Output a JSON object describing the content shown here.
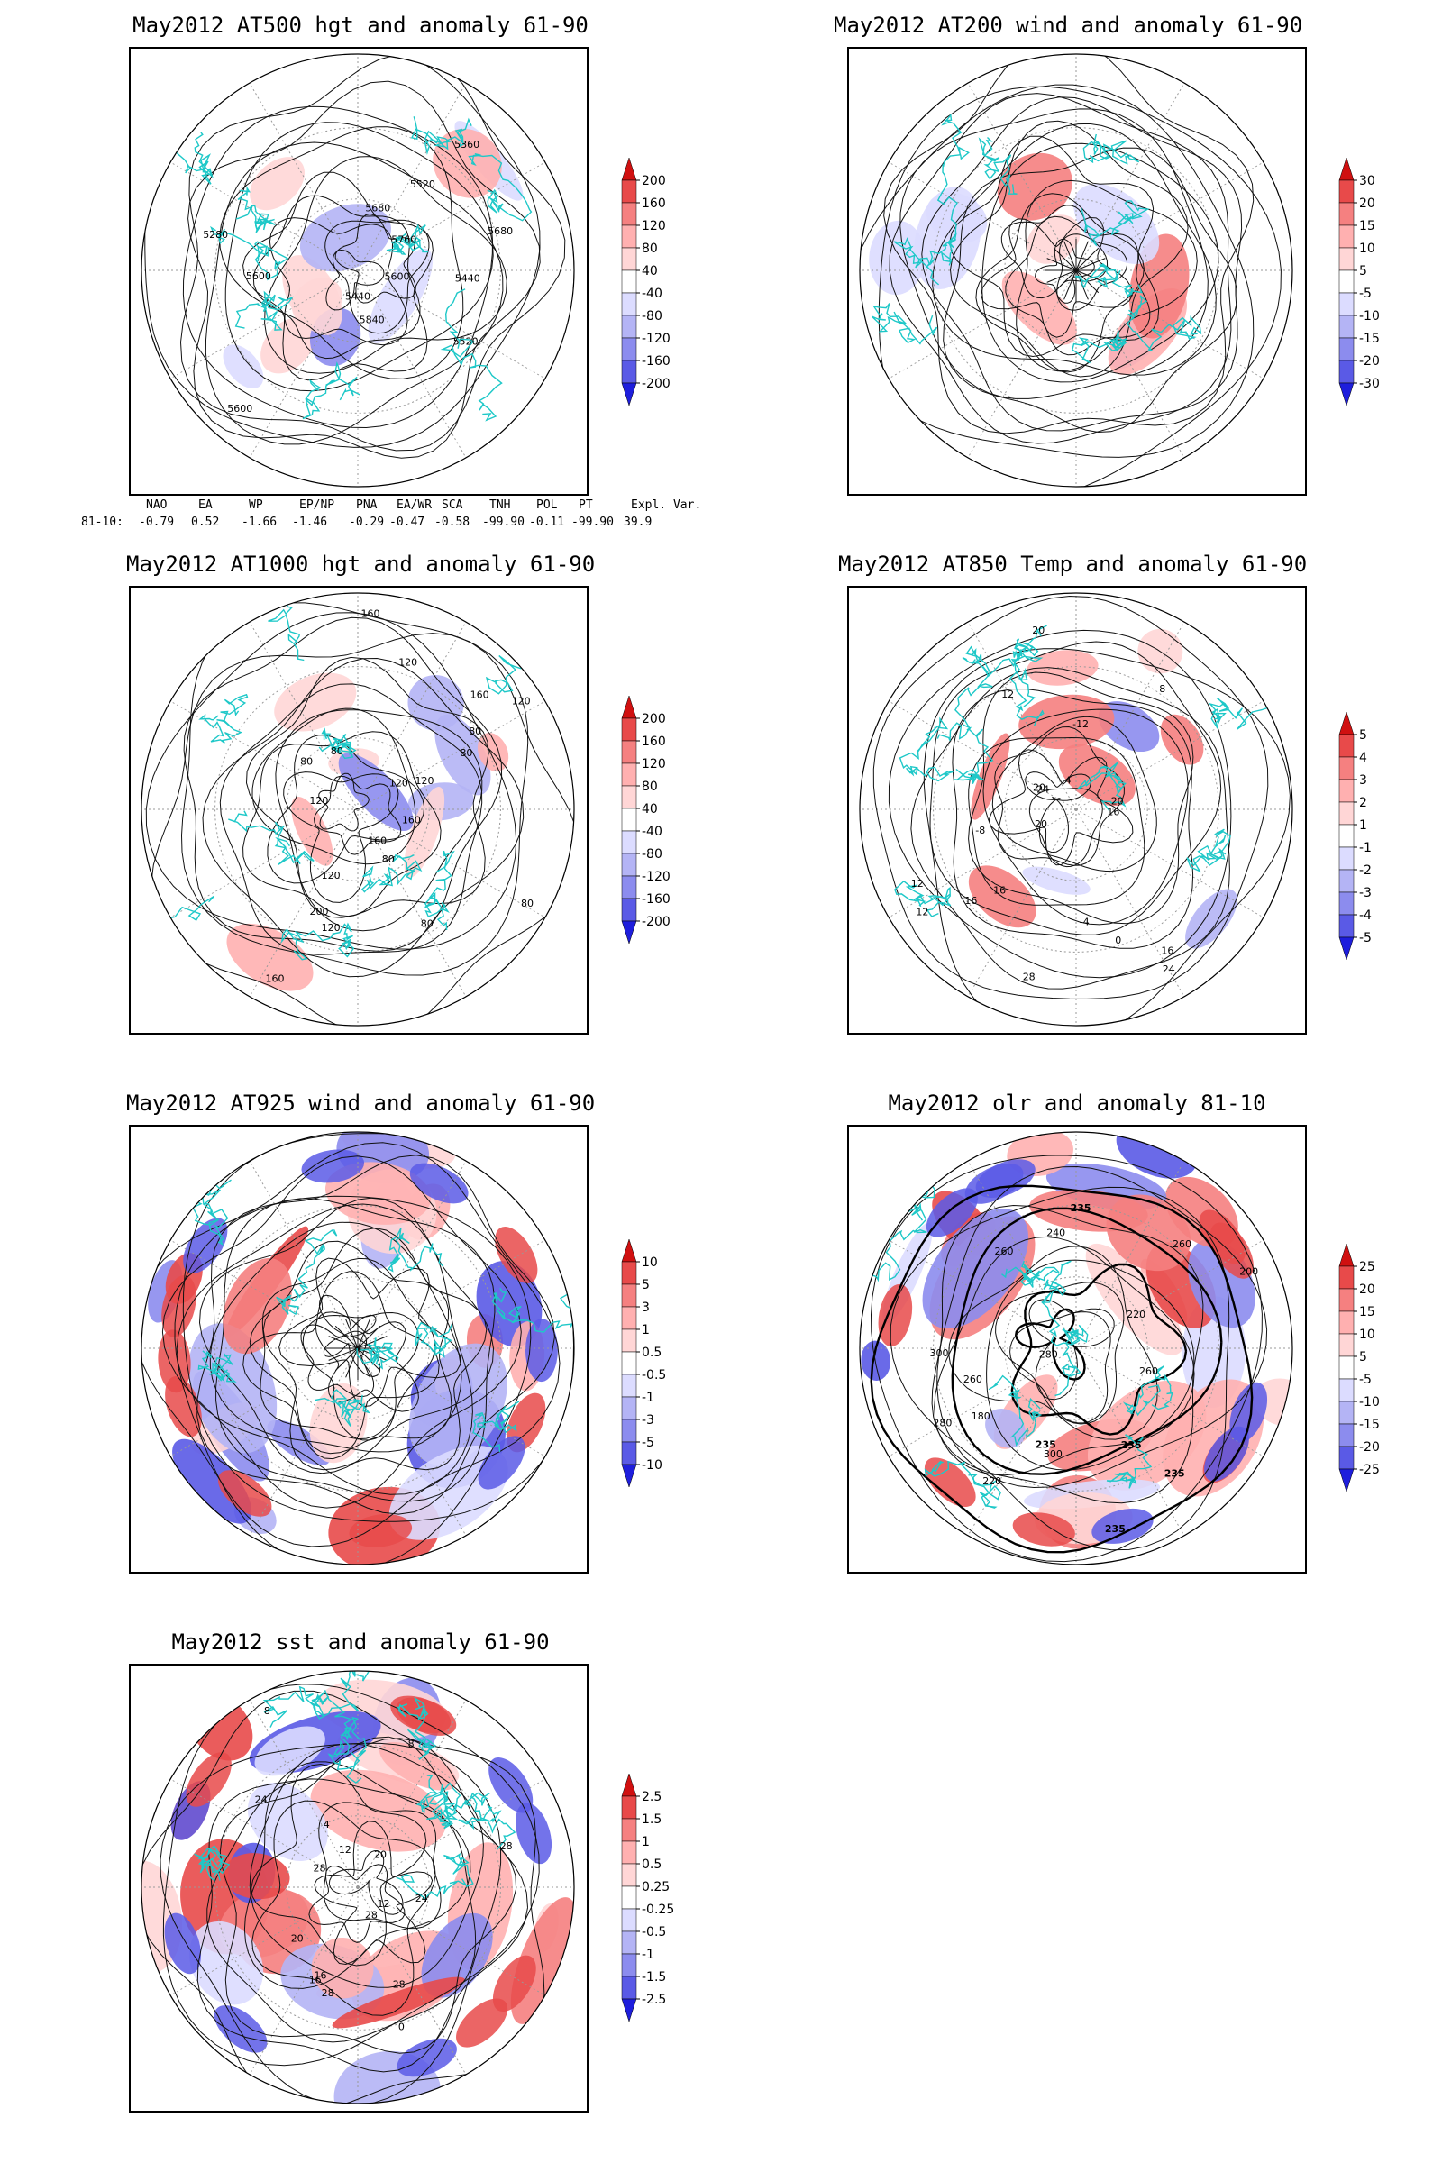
{
  "panels": [
    {
      "id": "p1",
      "title": "May2012 AT500 hgt and anomaly 61-90",
      "variant": "hgt500",
      "scale": [
        "200",
        "160",
        "120",
        "80",
        "40",
        "-40",
        "-80",
        "-120",
        "-160",
        "-200"
      ],
      "contour_labels": [
        "5600",
        "5520",
        "5440",
        "5600",
        "5280",
        "5360",
        "5440",
        "5520",
        "5600",
        "5680",
        "5760",
        "5840",
        "5680"
      ]
    },
    {
      "id": "p2",
      "title": "May2012 AT200 wind and anomaly 61-90",
      "variant": "wind200",
      "scale": [
        "30",
        "20",
        "15",
        "10",
        "5",
        "-5",
        "-10",
        "-15",
        "-20",
        "-30"
      ],
      "contour_labels": []
    },
    {
      "id": "p3",
      "title": "May2012 AT1000 hgt and anomaly 61-90",
      "variant": "hgt1000",
      "scale": [
        "200",
        "160",
        "120",
        "80",
        "40",
        "-40",
        "-80",
        "-120",
        "-160",
        "-200"
      ],
      "contour_labels": [
        "80",
        "120",
        "160",
        "160",
        "200",
        "160",
        "120",
        "80",
        "120",
        "80",
        "120",
        "160",
        "80",
        "120",
        "120",
        "160",
        "80",
        "120",
        "80",
        "80"
      ]
    },
    {
      "id": "p4",
      "title": "May2012 AT850 Temp and anomaly 61-90",
      "variant": "t850",
      "scale": [
        "5",
        "4",
        "3",
        "2",
        "1",
        "-1",
        "-2",
        "-3",
        "-4",
        "-5"
      ],
      "contour_labels": [
        "16",
        "12",
        "12",
        "16",
        "20",
        "24",
        "8",
        "0",
        "-8",
        "-12",
        "-4",
        "4",
        "12",
        "16",
        "20",
        "24",
        "28",
        "20",
        "16",
        "20"
      ]
    },
    {
      "id": "p5",
      "title": "May2012 AT925 wind and anomaly 61-90",
      "variant": "wind925",
      "scale": [
        "10",
        "5",
        "3",
        "1",
        "0.5",
        "-0.5",
        "-1",
        "-3",
        "-5",
        "-10"
      ],
      "contour_labels": []
    },
    {
      "id": "p6",
      "title": "May2012 olr and anomaly 81-10",
      "variant": "olr",
      "scale": [
        "25",
        "20",
        "15",
        "10",
        "5",
        "-5",
        "-10",
        "-15",
        "-20",
        "-25"
      ],
      "contour_labels": [
        "235",
        "260",
        "240",
        "235",
        "220",
        "260",
        "280",
        "300",
        "235",
        "200",
        "180",
        "220",
        "260",
        "280",
        "300",
        "235",
        "260",
        "235"
      ]
    },
    {
      "id": "p7",
      "title": "May2012 sst and anomaly 61-90",
      "variant": "sst",
      "scale": [
        "2.5",
        "1.5",
        "1",
        "0.5",
        "0.25",
        "-0.25",
        "-0.5",
        "-1",
        "-1.5",
        "-2.5"
      ],
      "contour_labels": [
        "28",
        "28",
        "24",
        "20",
        "16",
        "12",
        "8",
        "4",
        "0",
        "28",
        "28",
        "24",
        "20",
        "16",
        "12",
        "8",
        "28"
      ]
    }
  ],
  "teleconnection": {
    "headers": [
      "NAO",
      "EA",
      "WP",
      "EP/NP",
      "PNA",
      "EA/WR",
      "SCA",
      "TNH",
      "POL",
      "PT",
      "Expl. Var."
    ],
    "row_label": "81-10:",
    "values": [
      "-0.79",
      "0.52",
      "-1.66",
      "-1.46",
      "-0.29",
      "-0.47",
      "-0.58",
      "-99.90",
      "-0.11",
      "-99.90",
      "39.9"
    ]
  },
  "colors": {
    "coast": "#1ec8c8",
    "pos": [
      "#ffd6d6",
      "#ffb0b0",
      "#f58080",
      "#e84a4a",
      "#d01010"
    ],
    "neg": [
      "#dcdcff",
      "#b4b4f5",
      "#8c8cee",
      "#5a5ae6",
      "#1e1edc"
    ]
  }
}
